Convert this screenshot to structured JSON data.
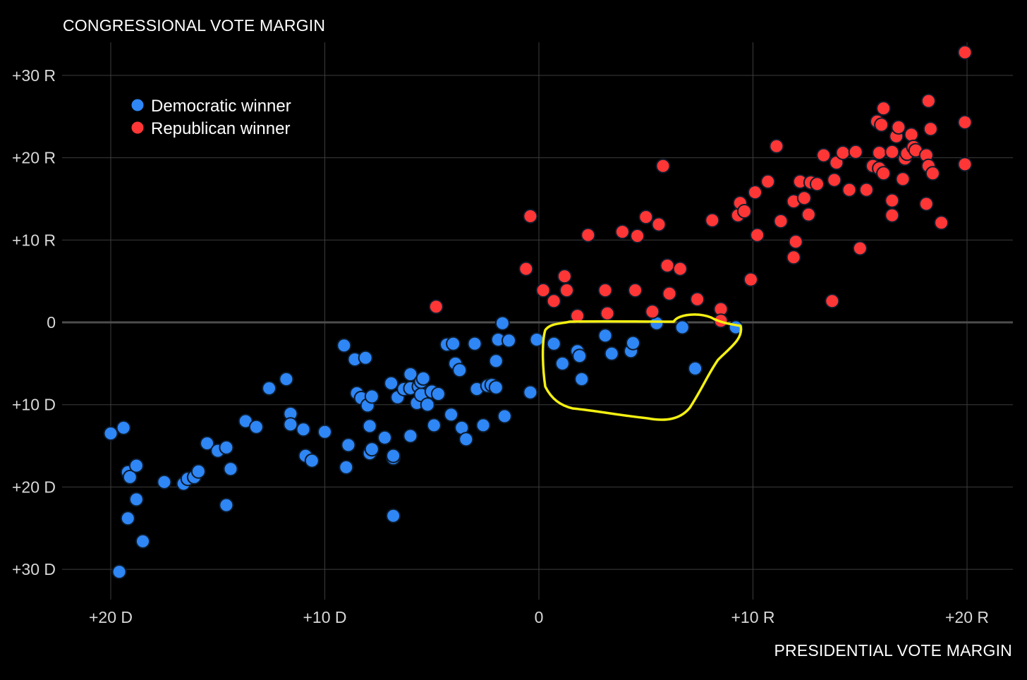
{
  "chart_data": {
    "type": "scatter",
    "ylabel": "CONGRESSIONAL VOTE MARGIN",
    "xlabel": "PRESIDENTIAL VOTE MARGIN",
    "xlim": [
      -22,
      22
    ],
    "ylim": [
      -33,
      34
    ],
    "x_ticks": [
      {
        "value": -20,
        "label": "+20 D"
      },
      {
        "value": -10,
        "label": "+10 D"
      },
      {
        "value": 0,
        "label": "0"
      },
      {
        "value": 10,
        "label": "+10 R"
      },
      {
        "value": 20,
        "label": "+20 R"
      }
    ],
    "y_ticks": [
      {
        "value": 30,
        "label": "+30 R"
      },
      {
        "value": 20,
        "label": "+20 R"
      },
      {
        "value": 10,
        "label": "+10 R"
      },
      {
        "value": 0,
        "label": "0"
      },
      {
        "value": -10,
        "label": "+10 D"
      },
      {
        "value": -20,
        "label": "+20 D"
      },
      {
        "value": -30,
        "label": "+30 D"
      }
    ],
    "grid": true,
    "legend_position": "top-left",
    "annotation": "yellow hand-drawn loop around Democratic winners in districts won by the Republican presidential candidate",
    "series": [
      {
        "name": "Democratic winner",
        "color": "#2f86f5",
        "points": [
          [
            -20.0,
            -13.5
          ],
          [
            -19.4,
            -12.8
          ],
          [
            -19.2,
            -18.2
          ],
          [
            -19.1,
            -18.8
          ],
          [
            -18.8,
            -17.4
          ],
          [
            -18.8,
            -21.5
          ],
          [
            -19.2,
            -23.8
          ],
          [
            -18.5,
            -26.6
          ],
          [
            -19.6,
            -30.3
          ],
          [
            -17.5,
            -19.4
          ],
          [
            -16.6,
            -19.6
          ],
          [
            -16.4,
            -19.0
          ],
          [
            -16.1,
            -18.8
          ],
          [
            -15.9,
            -18.1
          ],
          [
            -15.5,
            -14.7
          ],
          [
            -15.0,
            -15.6
          ],
          [
            -14.6,
            -15.2
          ],
          [
            -14.4,
            -17.8
          ],
          [
            -14.6,
            -22.2
          ],
          [
            -13.7,
            -12.0
          ],
          [
            -13.2,
            -12.7
          ],
          [
            -12.6,
            -8.0
          ],
          [
            -11.8,
            -6.9
          ],
          [
            -11.6,
            -11.1
          ],
          [
            -11.6,
            -12.4
          ],
          [
            -11.0,
            -13.0
          ],
          [
            -10.9,
            -16.2
          ],
          [
            -10.6,
            -16.8
          ],
          [
            -10.0,
            -13.3
          ],
          [
            -9.1,
            -2.8
          ],
          [
            -8.9,
            -14.9
          ],
          [
            -9.0,
            -17.6
          ],
          [
            -8.6,
            -4.5
          ],
          [
            -8.5,
            -8.6
          ],
          [
            -8.3,
            -9.2
          ],
          [
            -8.1,
            -4.3
          ],
          [
            -8.0,
            -10.1
          ],
          [
            -7.8,
            -9.0
          ],
          [
            -7.9,
            -12.6
          ],
          [
            -7.9,
            -15.9
          ],
          [
            -7.8,
            -15.4
          ],
          [
            -7.2,
            -14.0
          ],
          [
            -6.9,
            -7.4
          ],
          [
            -6.8,
            -16.5
          ],
          [
            -6.8,
            -16.2
          ],
          [
            -6.8,
            -23.5
          ],
          [
            -6.6,
            -9.1
          ],
          [
            -6.3,
            -8.1
          ],
          [
            -6.0,
            -6.3
          ],
          [
            -6.0,
            -8.0
          ],
          [
            -6.0,
            -13.8
          ],
          [
            -5.7,
            -9.8
          ],
          [
            -5.6,
            -7.8
          ],
          [
            -5.5,
            -8.8
          ],
          [
            -5.5,
            -7.2
          ],
          [
            -5.4,
            -6.8
          ],
          [
            -5.2,
            -10.0
          ],
          [
            -5.0,
            -8.4
          ],
          [
            -4.7,
            -8.7
          ],
          [
            -4.9,
            -12.5
          ],
          [
            -4.3,
            -2.7
          ],
          [
            -4.1,
            -11.2
          ],
          [
            -4.0,
            -2.6
          ],
          [
            -3.9,
            -5.0
          ],
          [
            -3.7,
            -5.8
          ],
          [
            -3.6,
            -12.8
          ],
          [
            -3.4,
            -14.2
          ],
          [
            -3.0,
            -2.6
          ],
          [
            -2.9,
            -8.1
          ],
          [
            -2.6,
            -12.5
          ],
          [
            -2.4,
            -7.7
          ],
          [
            -2.2,
            -7.6
          ],
          [
            -2.0,
            -7.9
          ],
          [
            -2.0,
            -4.7
          ],
          [
            -1.9,
            -2.1
          ],
          [
            -1.7,
            -0.1
          ],
          [
            -1.6,
            -11.4
          ],
          [
            -1.4,
            -2.2
          ],
          [
            -0.4,
            -8.5
          ],
          [
            -0.1,
            -2.1
          ],
          [
            0.7,
            -2.6
          ],
          [
            1.1,
            -5.0
          ],
          [
            1.8,
            -3.5
          ],
          [
            1.9,
            -4.1
          ],
          [
            2.0,
            -6.9
          ],
          [
            3.1,
            -1.6
          ],
          [
            3.4,
            -3.8
          ],
          [
            4.3,
            -3.5
          ],
          [
            4.4,
            -2.5
          ],
          [
            5.5,
            -0.1
          ],
          [
            6.7,
            -0.6
          ],
          [
            7.3,
            -5.6
          ],
          [
            9.2,
            -0.6
          ]
        ]
      },
      {
        "name": "Republican winner",
        "color": "#ff3636",
        "points": [
          [
            -4.8,
            1.9
          ],
          [
            -0.6,
            6.5
          ],
          [
            -0.4,
            12.9
          ],
          [
            0.2,
            3.9
          ],
          [
            0.7,
            2.6
          ],
          [
            1.2,
            5.6
          ],
          [
            1.3,
            3.9
          ],
          [
            1.8,
            0.8
          ],
          [
            2.3,
            10.6
          ],
          [
            3.1,
            3.9
          ],
          [
            3.2,
            1.1
          ],
          [
            3.9,
            11.0
          ],
          [
            4.5,
            3.9
          ],
          [
            4.6,
            10.5
          ],
          [
            5.0,
            12.8
          ],
          [
            5.3,
            1.3
          ],
          [
            5.6,
            11.9
          ],
          [
            5.8,
            19.0
          ],
          [
            6.0,
            6.9
          ],
          [
            6.1,
            3.5
          ],
          [
            6.6,
            6.5
          ],
          [
            7.4,
            2.8
          ],
          [
            8.1,
            12.4
          ],
          [
            8.5,
            1.6
          ],
          [
            8.5,
            0.2
          ],
          [
            9.3,
            13.0
          ],
          [
            9.4,
            14.5
          ],
          [
            9.6,
            13.5
          ],
          [
            9.9,
            5.2
          ],
          [
            10.1,
            15.8
          ],
          [
            10.2,
            10.6
          ],
          [
            10.7,
            17.1
          ],
          [
            11.1,
            21.4
          ],
          [
            11.3,
            12.3
          ],
          [
            11.9,
            7.9
          ],
          [
            11.9,
            14.7
          ],
          [
            12.0,
            9.8
          ],
          [
            12.2,
            17.1
          ],
          [
            12.4,
            15.1
          ],
          [
            12.6,
            13.1
          ],
          [
            12.7,
            17.0
          ],
          [
            13.0,
            16.8
          ],
          [
            13.3,
            20.3
          ],
          [
            13.7,
            2.6
          ],
          [
            13.8,
            17.3
          ],
          [
            13.9,
            19.4
          ],
          [
            14.2,
            20.6
          ],
          [
            14.5,
            16.1
          ],
          [
            14.8,
            20.7
          ],
          [
            15.0,
            9.0
          ],
          [
            15.3,
            16.1
          ],
          [
            15.6,
            19.0
          ],
          [
            15.8,
            24.4
          ],
          [
            15.9,
            20.6
          ],
          [
            15.9,
            18.7
          ],
          [
            16.0,
            24.0
          ],
          [
            16.1,
            26.0
          ],
          [
            16.1,
            18.1
          ],
          [
            16.5,
            20.7
          ],
          [
            16.5,
            14.8
          ],
          [
            16.5,
            13.0
          ],
          [
            16.7,
            22.6
          ],
          [
            16.8,
            23.7
          ],
          [
            17.0,
            17.4
          ],
          [
            17.1,
            19.9
          ],
          [
            17.2,
            20.5
          ],
          [
            17.4,
            22.8
          ],
          [
            17.5,
            21.3
          ],
          [
            17.6,
            20.9
          ],
          [
            18.1,
            20.3
          ],
          [
            18.1,
            14.4
          ],
          [
            18.2,
            19.0
          ],
          [
            18.2,
            26.9
          ],
          [
            18.3,
            23.5
          ],
          [
            18.4,
            18.1
          ],
          [
            18.8,
            12.1
          ],
          [
            19.9,
            19.2
          ],
          [
            19.9,
            24.3
          ],
          [
            19.9,
            32.8
          ]
        ]
      }
    ]
  }
}
